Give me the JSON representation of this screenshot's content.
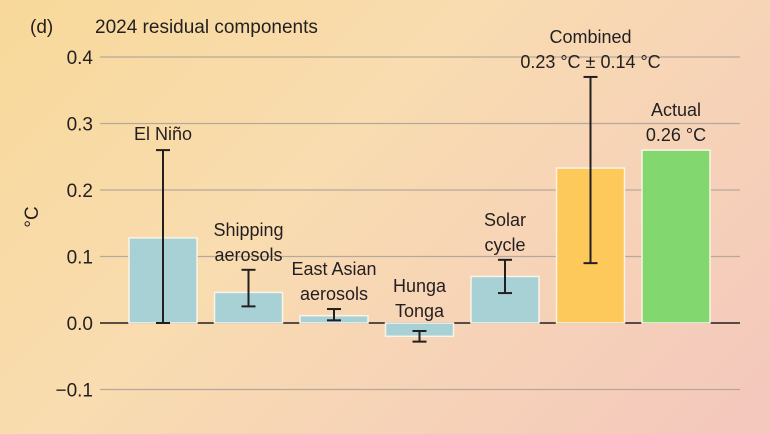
{
  "chart_data": {
    "type": "bar",
    "panel_label": "(d)",
    "title": "2024 residual components",
    "ylabel": "°C",
    "ylim": [
      -0.15,
      0.45
    ],
    "yticks": [
      -0.1,
      0.0,
      0.1,
      0.2,
      0.3,
      0.4
    ],
    "ytick_labels": [
      "−0.1",
      "0.0",
      "0.1",
      "0.2",
      "0.3",
      "0.4"
    ],
    "grid": true,
    "categories": [
      {
        "label": [
          "El Niño"
        ],
        "value": 0.128,
        "err_low": 0.0,
        "err_high": 0.26,
        "color": "#a8d1d6"
      },
      {
        "label": [
          "Shipping",
          "aerosols"
        ],
        "value": 0.046,
        "err_low": 0.025,
        "err_high": 0.08,
        "color": "#a8d1d6"
      },
      {
        "label": [
          "East Asian",
          "aerosols"
        ],
        "value": 0.011,
        "err_low": 0.004,
        "err_high": 0.021,
        "color": "#a8d1d6"
      },
      {
        "label": [
          "Hunga",
          "Tonga"
        ],
        "value": -0.02,
        "err_low": -0.028,
        "err_high": -0.012,
        "color": "#a8d1d6"
      },
      {
        "label": [
          "Solar",
          "cycle"
        ],
        "value": 0.07,
        "err_low": 0.045,
        "err_high": 0.095,
        "color": "#a8d1d6"
      },
      {
        "label": [
          "Combined",
          "0.23 °C ± 0.14 °C"
        ],
        "value": 0.233,
        "err_low": 0.09,
        "err_high": 0.37,
        "color": "#fcc95a"
      },
      {
        "label": [
          "Actual",
          "0.26 °C"
        ],
        "value": 0.26,
        "color": "#82d86e"
      }
    ]
  }
}
